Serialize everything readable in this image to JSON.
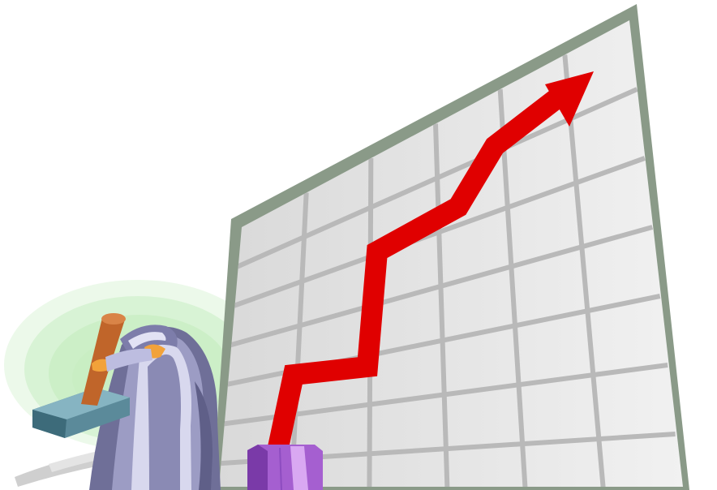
{
  "scene": {
    "subject": "growth-chart-clipart",
    "colors": {
      "frame": "#8a9a88",
      "panel_light": "#f1f1f1",
      "panel_dark": "#d9d9d9",
      "grid": "#b9b9b9",
      "trend_arrow": "#e00000",
      "figure_robe_dark": "#6f6f98",
      "figure_robe_light": "#d8d8ee",
      "halo": "#c9eec3",
      "hammer_head": "#5b8a9a",
      "hammer_handle": "#c0652a",
      "hand": "#f2a23a",
      "pedestal": "#a55fd0"
    }
  }
}
